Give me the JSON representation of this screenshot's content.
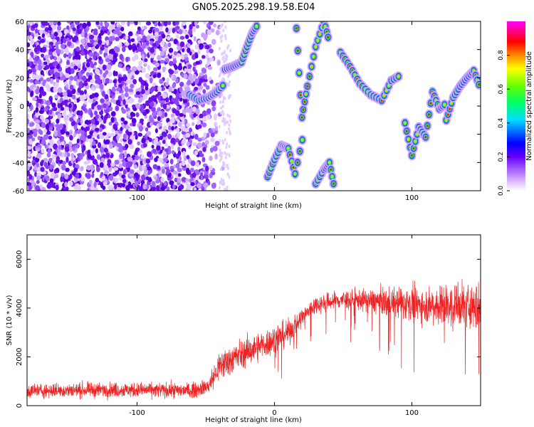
{
  "title": "GN05.2025.298.19.58.E04",
  "colors": {
    "spectrum_points": "#7a1be6",
    "snr_line": "#ee2222",
    "axis": "#000000"
  },
  "chart_data": [
    {
      "type": "heatmap",
      "title": "GN05.2025.298.19.58.E04",
      "xlabel": "Height of straight line (km)",
      "ylabel": "Frequency (Hz)",
      "xlim": [
        -180,
        150
      ],
      "ylim": [
        -60,
        60
      ],
      "xticks": [
        -100,
        0,
        100
      ],
      "xtick_labels": [
        "-100",
        "0",
        "100"
      ],
      "yticks": [
        -60,
        -40,
        -20,
        0,
        20,
        40,
        60
      ],
      "ytick_labels": [
        "-60",
        "-40",
        "-20",
        "0",
        "20",
        "40",
        "60"
      ],
      "colorbar": {
        "label": "Normalized spectral amplitude",
        "range": [
          0,
          1
        ],
        "ticks": [
          0.0,
          0.2,
          0.4,
          0.6,
          0.8
        ],
        "tick_labels": [
          "0.0",
          "0.2",
          "0.4",
          "0.6",
          "0.8"
        ]
      },
      "noise_region": {
        "x_range": [
          -180,
          -35
        ],
        "y_range": [
          -60,
          60
        ]
      },
      "ridge_segments": [
        {
          "x": [
            -62,
            -55,
            -48,
            -42,
            -36
          ],
          "y": [
            8,
            4,
            6,
            10,
            16
          ]
        },
        {
          "x": [
            -36,
            -30,
            -24,
            -20,
            -16,
            -12
          ],
          "y": [
            26,
            28,
            31,
            42,
            52,
            58
          ]
        },
        {
          "x": [
            -5,
            0,
            5,
            10,
            15,
            22
          ],
          "y": [
            -50,
            -38,
            -28,
            -30,
            -48,
            -16
          ]
        },
        {
          "x": [
            16,
            20,
            24,
            30,
            36,
            40
          ],
          "y": [
            55,
            -8,
            14,
            42,
            60,
            45
          ]
        },
        {
          "x": [
            30,
            36,
            40,
            44
          ],
          "y": [
            -55,
            -45,
            -40,
            -60
          ]
        },
        {
          "x": [
            48,
            55,
            62,
            70,
            78,
            85,
            92
          ],
          "y": [
            38,
            28,
            16,
            8,
            4,
            18,
            22
          ]
        },
        {
          "x": [
            95,
            100,
            105,
            110,
            115,
            120,
            125
          ],
          "y": [
            -12,
            -35,
            -15,
            -22,
            10,
            -2,
            2
          ]
        },
        {
          "x": [
            125,
            130,
            135,
            140,
            145,
            150
          ],
          "y": [
            -10,
            6,
            14,
            20,
            25,
            12
          ]
        }
      ]
    },
    {
      "type": "line",
      "xlabel": "Height of straight line (km)",
      "ylabel": "SNR (10 * v/v)",
      "xlim": [
        -180,
        150
      ],
      "ylim": [
        0,
        7000
      ],
      "xticks": [
        -100,
        0,
        100
      ],
      "xtick_labels": [
        "-100",
        "0",
        "100"
      ],
      "yticks": [
        0,
        2000,
        4000,
        6000
      ],
      "ytick_labels": [
        "0",
        "2000",
        "4000",
        "6000"
      ],
      "series": [
        {
          "name": "SNR",
          "trend_x": [
            -180,
            -120,
            -60,
            -48,
            -40,
            -30,
            -20,
            -10,
            0,
            10,
            20,
            30,
            50,
            70,
            90,
            110,
            130,
            150
          ],
          "trend_y": [
            600,
            650,
            620,
            800,
            1600,
            1950,
            2200,
            2450,
            2700,
            3000,
            3600,
            4150,
            4350,
            4300,
            4200,
            4150,
            4100,
            4000
          ],
          "noise_band_x": [
            -180,
            -50,
            -40,
            -20,
            0,
            30,
            60,
            90,
            120,
            150
          ],
          "noise_band_y": [
            320,
            340,
            700,
            650,
            650,
            400,
            450,
            700,
            900,
            1100
          ]
        }
      ]
    }
  ]
}
